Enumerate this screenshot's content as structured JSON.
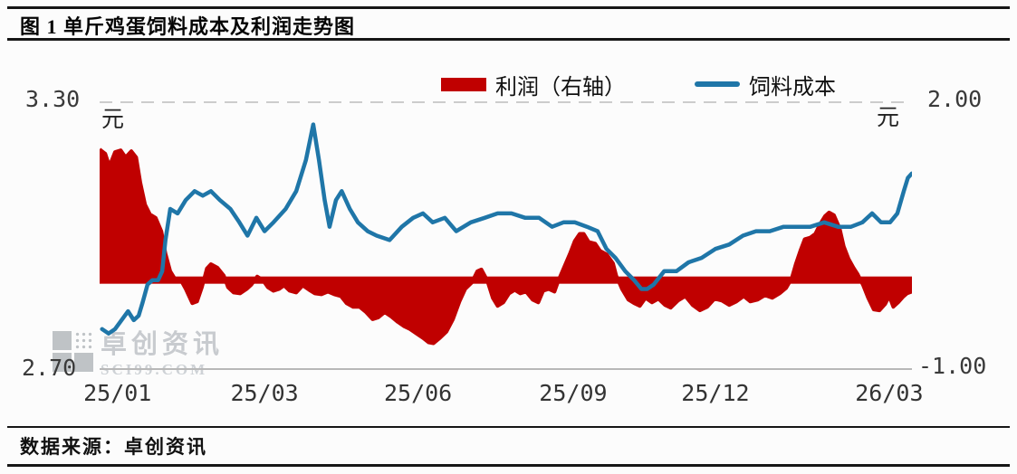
{
  "figure": {
    "title": "图 1 单斤鸡蛋饲料成本及利润走势图",
    "source": "数据来源：卓创资讯",
    "watermark": {
      "name": "卓创资讯",
      "domain": "SCI99.COM"
    }
  },
  "chart_data": {
    "type": "combo",
    "title": "单斤鸡蛋饲料成本及利润走势图",
    "legend_position": "top",
    "grid": "top-dashed-only",
    "left_axis": {
      "unit": "元",
      "min": 2.7,
      "max": 3.3,
      "max_label": "3.30",
      "min_label": "2.70"
    },
    "right_axis": {
      "unit": "元",
      "min": -1.0,
      "max": 2.0,
      "max_label": "2.00",
      "min_label": "-1.00"
    },
    "x_axis": {
      "ticks": [
        {
          "label": "25/01",
          "pos": 0.022
        },
        {
          "label": "25/03",
          "pos": 0.203
        },
        {
          "label": "25/06",
          "pos": 0.392
        },
        {
          "label": "25/09",
          "pos": 0.583
        },
        {
          "label": "25/12",
          "pos": 0.758
        },
        {
          "label": "26/03",
          "pos": 0.972
        }
      ]
    },
    "series": [
      {
        "name": "利润（右轴）",
        "type": "area",
        "axis": "right",
        "color": "#c00000",
        "points": [
          [
            0.0,
            1.47
          ],
          [
            0.007,
            1.42
          ],
          [
            0.012,
            1.28
          ],
          [
            0.019,
            1.44
          ],
          [
            0.026,
            1.46
          ],
          [
            0.032,
            1.38
          ],
          [
            0.039,
            1.45
          ],
          [
            0.045,
            1.38
          ],
          [
            0.05,
            1.1
          ],
          [
            0.056,
            0.85
          ],
          [
            0.062,
            0.74
          ],
          [
            0.069,
            0.7
          ],
          [
            0.076,
            0.55
          ],
          [
            0.081,
            0.3
          ],
          [
            0.087,
            0.1
          ],
          [
            0.093,
            0.01
          ],
          [
            0.1,
            0.0
          ],
          [
            0.106,
            -0.1
          ],
          [
            0.114,
            -0.26
          ],
          [
            0.12,
            -0.24
          ],
          [
            0.126,
            -0.08
          ],
          [
            0.132,
            0.13
          ],
          [
            0.137,
            0.18
          ],
          [
            0.145,
            0.14
          ],
          [
            0.153,
            0.05
          ],
          [
            0.158,
            -0.08
          ],
          [
            0.165,
            -0.14
          ],
          [
            0.173,
            -0.15
          ],
          [
            0.181,
            -0.1
          ],
          [
            0.187,
            -0.05
          ],
          [
            0.194,
            0.04
          ],
          [
            0.201,
            0.0
          ],
          [
            0.207,
            -0.08
          ],
          [
            0.214,
            -0.12
          ],
          [
            0.221,
            -0.1
          ],
          [
            0.227,
            -0.06
          ],
          [
            0.234,
            -0.12
          ],
          [
            0.242,
            -0.14
          ],
          [
            0.25,
            -0.06
          ],
          [
            0.258,
            -0.11
          ],
          [
            0.265,
            -0.15
          ],
          [
            0.273,
            -0.16
          ],
          [
            0.281,
            -0.13
          ],
          [
            0.289,
            -0.16
          ],
          [
            0.297,
            -0.18
          ],
          [
            0.304,
            -0.26
          ],
          [
            0.312,
            -0.3
          ],
          [
            0.32,
            -0.3
          ],
          [
            0.328,
            -0.36
          ],
          [
            0.336,
            -0.44
          ],
          [
            0.343,
            -0.42
          ],
          [
            0.351,
            -0.36
          ],
          [
            0.359,
            -0.41
          ],
          [
            0.367,
            -0.47
          ],
          [
            0.375,
            -0.52
          ],
          [
            0.382,
            -0.55
          ],
          [
            0.39,
            -0.6
          ],
          [
            0.398,
            -0.65
          ],
          [
            0.405,
            -0.7
          ],
          [
            0.411,
            -0.71
          ],
          [
            0.419,
            -0.65
          ],
          [
            0.427,
            -0.58
          ],
          [
            0.435,
            -0.44
          ],
          [
            0.443,
            -0.24
          ],
          [
            0.45,
            -0.1
          ],
          [
            0.458,
            -0.03
          ],
          [
            0.465,
            0.1
          ],
          [
            0.47,
            0.12
          ],
          [
            0.477,
            0.0
          ],
          [
            0.484,
            -0.2
          ],
          [
            0.49,
            -0.29
          ],
          [
            0.497,
            -0.25
          ],
          [
            0.504,
            -0.15
          ],
          [
            0.511,
            -0.11
          ],
          [
            0.518,
            -0.15
          ],
          [
            0.525,
            -0.13
          ],
          [
            0.533,
            -0.22
          ],
          [
            0.54,
            -0.25
          ],
          [
            0.546,
            -0.12
          ],
          [
            0.553,
            -0.1
          ],
          [
            0.56,
            -0.13
          ],
          [
            0.565,
            0.0
          ],
          [
            0.572,
            0.15
          ],
          [
            0.579,
            0.3
          ],
          [
            0.585,
            0.44
          ],
          [
            0.591,
            0.52
          ],
          [
            0.596,
            0.52
          ],
          [
            0.602,
            0.43
          ],
          [
            0.61,
            0.41
          ],
          [
            0.616,
            0.33
          ],
          [
            0.624,
            0.29
          ],
          [
            0.632,
            0.19
          ],
          [
            0.636,
            0.05
          ],
          [
            0.643,
            -0.1
          ],
          [
            0.651,
            -0.22
          ],
          [
            0.658,
            -0.26
          ],
          [
            0.665,
            -0.29
          ],
          [
            0.672,
            -0.2
          ],
          [
            0.68,
            -0.25
          ],
          [
            0.688,
            -0.21
          ],
          [
            0.696,
            -0.28
          ],
          [
            0.703,
            -0.31
          ],
          [
            0.712,
            -0.23
          ],
          [
            0.721,
            -0.18
          ],
          [
            0.73,
            -0.28
          ],
          [
            0.739,
            -0.34
          ],
          [
            0.748,
            -0.3
          ],
          [
            0.757,
            -0.21
          ],
          [
            0.766,
            -0.23
          ],
          [
            0.775,
            -0.28
          ],
          [
            0.784,
            -0.24
          ],
          [
            0.793,
            -0.18
          ],
          [
            0.801,
            -0.24
          ],
          [
            0.81,
            -0.22
          ],
          [
            0.819,
            -0.17
          ],
          [
            0.828,
            -0.2
          ],
          [
            0.837,
            -0.15
          ],
          [
            0.845,
            -0.09
          ],
          [
            0.852,
            0.02
          ],
          [
            0.857,
            0.18
          ],
          [
            0.863,
            0.34
          ],
          [
            0.868,
            0.46
          ],
          [
            0.875,
            0.48
          ],
          [
            0.881,
            0.52
          ],
          [
            0.887,
            0.63
          ],
          [
            0.893,
            0.72
          ],
          [
            0.898,
            0.76
          ],
          [
            0.904,
            0.73
          ],
          [
            0.911,
            0.58
          ],
          [
            0.916,
            0.38
          ],
          [
            0.922,
            0.24
          ],
          [
            0.928,
            0.14
          ],
          [
            0.933,
            0.07
          ],
          [
            0.94,
            -0.06
          ],
          [
            0.946,
            -0.2
          ],
          [
            0.953,
            -0.33
          ],
          [
            0.96,
            -0.34
          ],
          [
            0.967,
            -0.27
          ],
          [
            0.972,
            -0.18
          ],
          [
            0.977,
            -0.3
          ],
          [
            0.983,
            -0.25
          ],
          [
            0.989,
            -0.19
          ],
          [
            0.994,
            -0.15
          ],
          [
            1.0,
            -0.13
          ]
        ]
      },
      {
        "name": "饲料成本",
        "type": "line",
        "axis": "left",
        "color": "#1f76a8",
        "points": [
          [
            0.003,
            2.79
          ],
          [
            0.011,
            2.78
          ],
          [
            0.019,
            2.79
          ],
          [
            0.027,
            2.81
          ],
          [
            0.035,
            2.83
          ],
          [
            0.042,
            2.81
          ],
          [
            0.048,
            2.82
          ],
          [
            0.053,
            2.85
          ],
          [
            0.059,
            2.89
          ],
          [
            0.065,
            2.9
          ],
          [
            0.072,
            2.9
          ],
          [
            0.077,
            2.92
          ],
          [
            0.081,
            2.99
          ],
          [
            0.087,
            3.06
          ],
          [
            0.096,
            3.05
          ],
          [
            0.106,
            3.08
          ],
          [
            0.117,
            3.1
          ],
          [
            0.127,
            3.09
          ],
          [
            0.137,
            3.1
          ],
          [
            0.148,
            3.08
          ],
          [
            0.161,
            3.06
          ],
          [
            0.172,
            3.03
          ],
          [
            0.182,
            3.0
          ],
          [
            0.193,
            3.04
          ],
          [
            0.203,
            3.01
          ],
          [
            0.214,
            3.03
          ],
          [
            0.229,
            3.06
          ],
          [
            0.242,
            3.1
          ],
          [
            0.254,
            3.17
          ],
          [
            0.263,
            3.25
          ],
          [
            0.27,
            3.17
          ],
          [
            0.277,
            3.08
          ],
          [
            0.283,
            3.02
          ],
          [
            0.291,
            3.08
          ],
          [
            0.298,
            3.1
          ],
          [
            0.308,
            3.06
          ],
          [
            0.318,
            3.03
          ],
          [
            0.33,
            3.01
          ],
          [
            0.341,
            3.0
          ],
          [
            0.357,
            2.99
          ],
          [
            0.372,
            3.02
          ],
          [
            0.386,
            3.04
          ],
          [
            0.398,
            3.05
          ],
          [
            0.41,
            3.03
          ],
          [
            0.425,
            3.04
          ],
          [
            0.439,
            3.01
          ],
          [
            0.457,
            3.03
          ],
          [
            0.474,
            3.04
          ],
          [
            0.49,
            3.05
          ],
          [
            0.507,
            3.05
          ],
          [
            0.524,
            3.04
          ],
          [
            0.541,
            3.04
          ],
          [
            0.557,
            3.02
          ],
          [
            0.571,
            3.03
          ],
          [
            0.585,
            3.03
          ],
          [
            0.6,
            3.02
          ],
          [
            0.613,
            3.01
          ],
          [
            0.624,
            2.97
          ],
          [
            0.635,
            2.95
          ],
          [
            0.647,
            2.92
          ],
          [
            0.658,
            2.9
          ],
          [
            0.667,
            2.88
          ],
          [
            0.674,
            2.88
          ],
          [
            0.682,
            2.89
          ],
          [
            0.695,
            2.92
          ],
          [
            0.71,
            2.92
          ],
          [
            0.725,
            2.94
          ],
          [
            0.741,
            2.95
          ],
          [
            0.758,
            2.97
          ],
          [
            0.775,
            2.98
          ],
          [
            0.792,
            3.0
          ],
          [
            0.808,
            3.01
          ],
          [
            0.825,
            3.01
          ],
          [
            0.842,
            3.02
          ],
          [
            0.858,
            3.02
          ],
          [
            0.875,
            3.02
          ],
          [
            0.892,
            3.03
          ],
          [
            0.909,
            3.02
          ],
          [
            0.925,
            3.02
          ],
          [
            0.939,
            3.03
          ],
          [
            0.951,
            3.05
          ],
          [
            0.962,
            3.03
          ],
          [
            0.973,
            3.03
          ],
          [
            0.982,
            3.05
          ],
          [
            0.99,
            3.1
          ],
          [
            0.995,
            3.13
          ],
          [
            1.0,
            3.14
          ]
        ]
      }
    ]
  }
}
